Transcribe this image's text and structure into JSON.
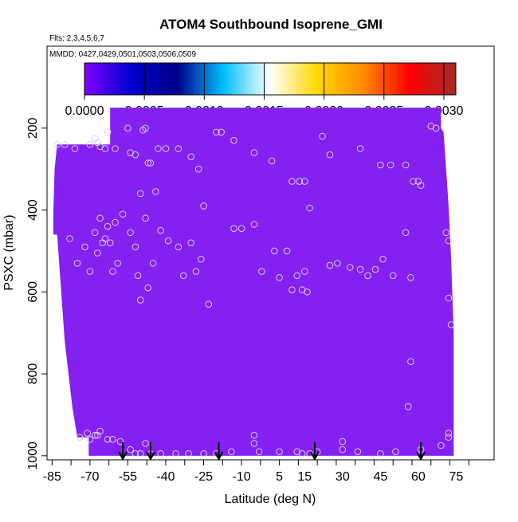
{
  "chart_data": {
    "type": "scatter",
    "title": "ATOM4 Southbound Isoprene_GMI",
    "subtitle_flights": "Flts: 2,3,4,5,6,7",
    "subtitle_dates": "MMDD: 0427,0429,0501,0503,0506,0509",
    "xlabel": "Latitude (deg N)",
    "ylabel": "PSXC (mbar)",
    "xlim": [
      -87,
      90
    ],
    "ylim": [
      1010,
      0
    ],
    "x_ticks": [
      -85,
      -70,
      -55,
      -40,
      -25,
      -10,
      5,
      15,
      30,
      45,
      60,
      75
    ],
    "x_tick_labels": [
      "-85",
      "-70",
      "-55",
      "-40",
      "-25",
      "-10",
      "5",
      "15",
      "30",
      "45",
      "60",
      "75"
    ],
    "y_ticks": [
      200,
      400,
      600,
      800,
      1000
    ],
    "y_tick_labels": [
      "200",
      "400",
      "600",
      "800",
      "1000"
    ],
    "colorbar": {
      "min": 0.0,
      "max": 0.0031,
      "ticks": [
        0.0,
        0.0005,
        0.001,
        0.0015,
        0.002,
        0.0025,
        0.003
      ],
      "tick_labels": [
        "0.0000",
        "0.0005",
        "0.0010",
        "0.0015",
        "0.0020",
        "0.0025",
        "0.0030"
      ],
      "colors": [
        "#7f00ff",
        "#0000cd",
        "#00008b",
        "#00bfff",
        "#ffffff",
        "#ffd700",
        "#ff8c00",
        "#ff0000",
        "#a52a2a"
      ]
    },
    "curtain": {
      "color": "#8420f0",
      "value": 0.0,
      "top_edge": [
        {
          "lat": -84.5,
          "p": 410
        },
        {
          "lat": -84,
          "p": 300
        },
        {
          "lat": -83,
          "p": 240
        },
        {
          "lat": -62,
          "p": 240
        },
        {
          "lat": -62,
          "p": 150
        },
        {
          "lat": 69,
          "p": 150
        },
        {
          "lat": 69,
          "p": 200
        },
        {
          "lat": 70,
          "p": 210
        },
        {
          "lat": 71,
          "p": 300
        },
        {
          "lat": 72,
          "p": 390
        },
        {
          "lat": 73,
          "p": 520
        },
        {
          "lat": 74,
          "p": 700
        }
      ],
      "bottom_edge": [
        {
          "lat": 74,
          "p": 1000
        },
        {
          "lat": -70.5,
          "p": 1000
        },
        {
          "lat": -70.5,
          "p": 955
        },
        {
          "lat": -75,
          "p": 955
        },
        {
          "lat": -77,
          "p": 880
        },
        {
          "lat": -80,
          "p": 720
        },
        {
          "lat": -83,
          "p": 460
        },
        {
          "lat": -84.5,
          "p": 460
        }
      ]
    },
    "points": [
      {
        "x": -83,
        "y": 240
      },
      {
        "x": -80,
        "y": 240
      },
      {
        "x": -76,
        "y": 250
      },
      {
        "x": -70,
        "y": 240
      },
      {
        "x": -68,
        "y": 225
      },
      {
        "x": -67,
        "y": 235
      },
      {
        "x": -66,
        "y": 245
      },
      {
        "x": -64,
        "y": 250
      },
      {
        "x": -63,
        "y": 210
      },
      {
        "x": -60,
        "y": 250
      },
      {
        "x": -55,
        "y": 200
      },
      {
        "x": -54,
        "y": 260
      },
      {
        "x": -52,
        "y": 265
      },
      {
        "x": -49,
        "y": 205
      },
      {
        "x": -48,
        "y": 200
      },
      {
        "x": -47,
        "y": 285
      },
      {
        "x": -46,
        "y": 285
      },
      {
        "x": -43,
        "y": 250
      },
      {
        "x": -40,
        "y": 250
      },
      {
        "x": -35,
        "y": 250
      },
      {
        "x": -30,
        "y": 270
      },
      {
        "x": -27,
        "y": 300
      },
      {
        "x": -25,
        "y": 390
      },
      {
        "x": -20,
        "y": 210
      },
      {
        "x": -18,
        "y": 210
      },
      {
        "x": -13,
        "y": 230
      },
      {
        "x": -5,
        "y": 260
      },
      {
        "x": 2,
        "y": 280
      },
      {
        "x": 10,
        "y": 330
      },
      {
        "x": 13,
        "y": 330
      },
      {
        "x": 15,
        "y": 330
      },
      {
        "x": 17,
        "y": 395
      },
      {
        "x": 22,
        "y": 220
      },
      {
        "x": 25,
        "y": 265
      },
      {
        "x": 37,
        "y": 250
      },
      {
        "x": 45,
        "y": 290
      },
      {
        "x": 49,
        "y": 290
      },
      {
        "x": 55,
        "y": 290
      },
      {
        "x": 58,
        "y": 330
      },
      {
        "x": 60,
        "y": 330
      },
      {
        "x": 61,
        "y": 340
      },
      {
        "x": 65,
        "y": 195
      },
      {
        "x": 67,
        "y": 200
      },
      {
        "x": -78,
        "y": 470
      },
      {
        "x": -75,
        "y": 530
      },
      {
        "x": -72,
        "y": 490
      },
      {
        "x": -70,
        "y": 550
      },
      {
        "x": -68,
        "y": 455
      },
      {
        "x": -67,
        "y": 505
      },
      {
        "x": -66,
        "y": 420
      },
      {
        "x": -65,
        "y": 480
      },
      {
        "x": -64,
        "y": 470
      },
      {
        "x": -63,
        "y": 440
      },
      {
        "x": -62,
        "y": 480
      },
      {
        "x": -61,
        "y": 550
      },
      {
        "x": -60,
        "y": 430
      },
      {
        "x": -59,
        "y": 530
      },
      {
        "x": -57,
        "y": 410
      },
      {
        "x": -54,
        "y": 455
      },
      {
        "x": -52,
        "y": 490
      },
      {
        "x": -51,
        "y": 560
      },
      {
        "x": -50,
        "y": 360
      },
      {
        "x": -48,
        "y": 420
      },
      {
        "x": -47,
        "y": 590
      },
      {
        "x": -45,
        "y": 530
      },
      {
        "x": -44,
        "y": 355
      },
      {
        "x": -42,
        "y": 450
      },
      {
        "x": -39,
        "y": 475
      },
      {
        "x": -35,
        "y": 490
      },
      {
        "x": -33,
        "y": 560
      },
      {
        "x": -30,
        "y": 480
      },
      {
        "x": -26,
        "y": 520
      },
      {
        "x": -23,
        "y": 630
      },
      {
        "x": -50,
        "y": 620
      },
      {
        "x": -28,
        "y": 550
      },
      {
        "x": -13,
        "y": 445
      },
      {
        "x": -10,
        "y": 445
      },
      {
        "x": -5,
        "y": 435
      },
      {
        "x": -2,
        "y": 550
      },
      {
        "x": 3,
        "y": 500
      },
      {
        "x": 5,
        "y": 565
      },
      {
        "x": 8,
        "y": 500
      },
      {
        "x": 10,
        "y": 595
      },
      {
        "x": 12,
        "y": 560
      },
      {
        "x": 14,
        "y": 595
      },
      {
        "x": 15,
        "y": 550
      },
      {
        "x": 16,
        "y": 600
      },
      {
        "x": 25,
        "y": 535
      },
      {
        "x": 28,
        "y": 530
      },
      {
        "x": 33,
        "y": 540
      },
      {
        "x": 37,
        "y": 545
      },
      {
        "x": 40,
        "y": 560
      },
      {
        "x": 43,
        "y": 545
      },
      {
        "x": 46,
        "y": 520
      },
      {
        "x": 50,
        "y": 560
      },
      {
        "x": 55,
        "y": 455
      },
      {
        "x": 57,
        "y": 565
      },
      {
        "x": 71,
        "y": 455
      },
      {
        "x": 72,
        "y": 475
      },
      {
        "x": 72,
        "y": 615
      },
      {
        "x": 73,
        "y": 680
      },
      {
        "x": 57,
        "y": 770
      },
      {
        "x": 56,
        "y": 880
      },
      {
        "x": -74,
        "y": 955
      },
      {
        "x": -71,
        "y": 945
      },
      {
        "x": -70,
        "y": 960
      },
      {
        "x": -68,
        "y": 950
      },
      {
        "x": -67,
        "y": 950
      },
      {
        "x": -66,
        "y": 940
      },
      {
        "x": -63,
        "y": 960
      },
      {
        "x": -61,
        "y": 960
      },
      {
        "x": -58,
        "y": 965
      },
      {
        "x": -54,
        "y": 985
      },
      {
        "x": -52,
        "y": 995
      },
      {
        "x": -50,
        "y": 995
      },
      {
        "x": -48,
        "y": 970
      },
      {
        "x": -46,
        "y": 995
      },
      {
        "x": -42,
        "y": 995
      },
      {
        "x": -36,
        "y": 995
      },
      {
        "x": -31,
        "y": 995
      },
      {
        "x": -25,
        "y": 995
      },
      {
        "x": -20,
        "y": 995
      },
      {
        "x": -14,
        "y": 990
      },
      {
        "x": -5,
        "y": 950
      },
      {
        "x": -5,
        "y": 970
      },
      {
        "x": -3,
        "y": 990
      },
      {
        "x": 5,
        "y": 990
      },
      {
        "x": 12,
        "y": 990
      },
      {
        "x": 14,
        "y": 995
      },
      {
        "x": 17,
        "y": 995
      },
      {
        "x": 20,
        "y": 990
      },
      {
        "x": 30,
        "y": 965
      },
      {
        "x": 30,
        "y": 985
      },
      {
        "x": 36,
        "y": 990
      },
      {
        "x": 45,
        "y": 995
      },
      {
        "x": 51,
        "y": 990
      },
      {
        "x": 61,
        "y": 985
      },
      {
        "x": 69,
        "y": 975
      },
      {
        "x": 72,
        "y": 945
      },
      {
        "x": 72,
        "y": 955
      }
    ],
    "flight_arrows_lat": [
      -57,
      -46,
      -19,
      19,
      61
    ]
  }
}
